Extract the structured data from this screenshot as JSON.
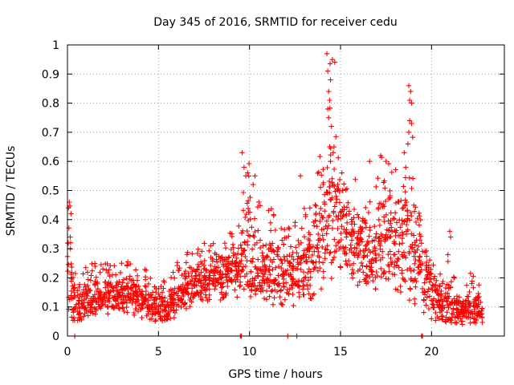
{
  "chart_data": {
    "type": "scatter",
    "title": "Day 345 of 2016, SRMTID for receiver cedu",
    "xlabel": "GPS time / hours",
    "ylabel": "SRMTID / TECUs",
    "xlim": [
      0,
      24
    ],
    "ylim": [
      0,
      1
    ],
    "xticks": [
      0,
      5,
      10,
      15,
      20
    ],
    "xtick_labels": [
      "0",
      "5",
      "10",
      "15",
      "20"
    ],
    "yticks": [
      0,
      0.1,
      0.2,
      0.3,
      0.4,
      0.5,
      0.6,
      0.7,
      0.8,
      0.9,
      1
    ],
    "ytick_labels": [
      "0",
      "0.1",
      "0.2",
      "0.3",
      "0.4",
      "0.5",
      "0.6",
      "0.7",
      "0.8",
      "0.9",
      "1"
    ],
    "grid": true,
    "marker": "+",
    "color": "#ff0000",
    "note": "approximately 2000 plus-markers; series given as 0.25-hour bins with low/typical/high SRMTID plus notable spikes",
    "envelope": {
      "x_hours": [
        0.0,
        0.25,
        0.5,
        0.75,
        1.0,
        1.25,
        1.5,
        1.75,
        2.0,
        2.25,
        2.5,
        2.75,
        3.0,
        3.25,
        3.5,
        3.75,
        4.0,
        4.25,
        4.5,
        4.75,
        5.0,
        5.25,
        5.5,
        5.75,
        6.0,
        6.25,
        6.5,
        6.75,
        7.0,
        7.25,
        7.5,
        7.75,
        8.0,
        8.25,
        8.5,
        8.75,
        9.0,
        9.25,
        9.5,
        9.75,
        10.0,
        10.25,
        10.5,
        10.75,
        11.0,
        11.25,
        11.5,
        11.75,
        12.0,
        12.25,
        12.5,
        12.75,
        13.0,
        13.25,
        13.5,
        13.75,
        14.0,
        14.25,
        14.5,
        14.75,
        15.0,
        15.25,
        15.5,
        15.75,
        16.0,
        16.25,
        16.5,
        16.75,
        17.0,
        17.25,
        17.5,
        17.75,
        18.0,
        18.25,
        18.5,
        18.75,
        19.0,
        19.25,
        19.5,
        19.75,
        20.0,
        20.25,
        20.5,
        20.75,
        21.0,
        21.25,
        21.5,
        21.75,
        22.0,
        22.25,
        22.5,
        22.75
      ],
      "low": [
        0.06,
        0.06,
        0.05,
        0.05,
        0.06,
        0.07,
        0.07,
        0.07,
        0.08,
        0.08,
        0.09,
        0.09,
        0.09,
        0.08,
        0.08,
        0.07,
        0.07,
        0.06,
        0.05,
        0.05,
        0.05,
        0.05,
        0.06,
        0.07,
        0.08,
        0.09,
        0.1,
        0.11,
        0.12,
        0.12,
        0.11,
        0.11,
        0.12,
        0.12,
        0.13,
        0.13,
        0.13,
        0.14,
        0.15,
        0.15,
        0.15,
        0.16,
        0.15,
        0.14,
        0.13,
        0.12,
        0.11,
        0.1,
        0.1,
        0.1,
        0.11,
        0.11,
        0.12,
        0.14,
        0.16,
        0.18,
        0.2,
        0.21,
        0.22,
        0.22,
        0.2,
        0.19,
        0.18,
        0.17,
        0.16,
        0.16,
        0.17,
        0.18,
        0.18,
        0.18,
        0.17,
        0.16,
        0.15,
        0.14,
        0.13,
        0.12,
        0.11,
        0.1,
        0.08,
        0.06,
        0.05,
        0.05,
        0.05,
        0.04,
        0.04,
        0.04,
        0.04,
        0.05,
        0.05,
        0.05,
        0.05,
        0.05
      ],
      "typical": [
        0.2,
        0.12,
        0.11,
        0.12,
        0.13,
        0.14,
        0.14,
        0.14,
        0.14,
        0.15,
        0.15,
        0.15,
        0.15,
        0.15,
        0.14,
        0.14,
        0.13,
        0.12,
        0.11,
        0.1,
        0.1,
        0.1,
        0.11,
        0.13,
        0.14,
        0.16,
        0.17,
        0.18,
        0.19,
        0.19,
        0.19,
        0.2,
        0.21,
        0.22,
        0.22,
        0.22,
        0.22,
        0.23,
        0.28,
        0.32,
        0.28,
        0.26,
        0.25,
        0.24,
        0.24,
        0.23,
        0.23,
        0.22,
        0.22,
        0.21,
        0.22,
        0.23,
        0.24,
        0.26,
        0.29,
        0.33,
        0.37,
        0.42,
        0.44,
        0.43,
        0.4,
        0.36,
        0.33,
        0.31,
        0.3,
        0.29,
        0.28,
        0.3,
        0.32,
        0.34,
        0.35,
        0.34,
        0.34,
        0.33,
        0.33,
        0.34,
        0.32,
        0.28,
        0.22,
        0.17,
        0.14,
        0.12,
        0.12,
        0.12,
        0.1,
        0.09,
        0.09,
        0.1,
        0.1,
        0.1,
        0.09,
        0.08
      ],
      "high": [
        0.46,
        0.28,
        0.22,
        0.22,
        0.24,
        0.26,
        0.25,
        0.25,
        0.25,
        0.26,
        0.26,
        0.27,
        0.27,
        0.27,
        0.26,
        0.25,
        0.24,
        0.23,
        0.21,
        0.2,
        0.19,
        0.19,
        0.21,
        0.24,
        0.26,
        0.28,
        0.3,
        0.31,
        0.32,
        0.33,
        0.33,
        0.34,
        0.35,
        0.36,
        0.36,
        0.36,
        0.37,
        0.38,
        0.5,
        0.63,
        0.55,
        0.5,
        0.47,
        0.45,
        0.44,
        0.42,
        0.41,
        0.4,
        0.4,
        0.39,
        0.4,
        0.42,
        0.44,
        0.48,
        0.56,
        0.65,
        0.7,
        0.97,
        0.95,
        0.66,
        0.6,
        0.57,
        0.55,
        0.54,
        0.53,
        0.52,
        0.52,
        0.56,
        0.6,
        0.62,
        0.62,
        0.6,
        0.6,
        0.6,
        0.62,
        0.86,
        0.56,
        0.46,
        0.38,
        0.3,
        0.26,
        0.24,
        0.26,
        0.26,
        0.22,
        0.2,
        0.2,
        0.21,
        0.22,
        0.22,
        0.2,
        0.18
      ]
    },
    "spikes": [
      {
        "x": 0.1,
        "y": 0.46
      },
      {
        "x": 0.2,
        "y": 0.42
      },
      {
        "x": 0.05,
        "y": 0.32
      },
      {
        "x": 0.15,
        "y": 0.34
      },
      {
        "x": 9.6,
        "y": 0.63
      },
      {
        "x": 9.7,
        "y": 0.58
      },
      {
        "x": 9.8,
        "y": 0.55
      },
      {
        "x": 10.3,
        "y": 0.55
      },
      {
        "x": 10.2,
        "y": 0.52
      },
      {
        "x": 12.8,
        "y": 0.55
      },
      {
        "x": 14.25,
        "y": 0.97
      },
      {
        "x": 14.55,
        "y": 0.95
      },
      {
        "x": 14.3,
        "y": 0.91
      },
      {
        "x": 14.45,
        "y": 0.88
      },
      {
        "x": 14.35,
        "y": 0.84
      },
      {
        "x": 14.4,
        "y": 0.81
      },
      {
        "x": 14.3,
        "y": 0.78
      },
      {
        "x": 14.35,
        "y": 0.75
      },
      {
        "x": 14.5,
        "y": 0.72
      },
      {
        "x": 14.4,
        "y": 0.65
      },
      {
        "x": 14.6,
        "y": 0.63
      },
      {
        "x": 14.45,
        "y": 0.6
      },
      {
        "x": 16.6,
        "y": 0.6
      },
      {
        "x": 17.2,
        "y": 0.62
      },
      {
        "x": 17.5,
        "y": 0.6
      },
      {
        "x": 18.75,
        "y": 0.86
      },
      {
        "x": 18.85,
        "y": 0.84
      },
      {
        "x": 18.8,
        "y": 0.81
      },
      {
        "x": 18.9,
        "y": 0.8
      },
      {
        "x": 18.8,
        "y": 0.74
      },
      {
        "x": 18.9,
        "y": 0.73
      },
      {
        "x": 18.75,
        "y": 0.7
      },
      {
        "x": 18.7,
        "y": 0.66
      },
      {
        "x": 18.5,
        "y": 0.63
      },
      {
        "x": 21.0,
        "y": 0.36
      },
      {
        "x": 21.05,
        "y": 0.34
      },
      {
        "x": 20.9,
        "y": 0.28
      }
    ],
    "zero_points": [
      {
        "x": 0.4,
        "y": 0.0
      },
      {
        "x": 9.5,
        "y": 0.0
      },
      {
        "x": 9.55,
        "y": 0.0
      },
      {
        "x": 12.1,
        "y": 0.0
      },
      {
        "x": 12.6,
        "y": 0.0
      },
      {
        "x": 19.45,
        "y": 0.0
      },
      {
        "x": 19.5,
        "y": 0.0
      }
    ]
  }
}
